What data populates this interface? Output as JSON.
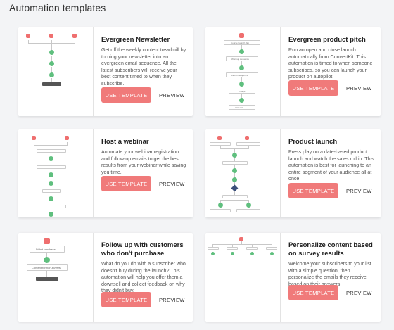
{
  "page": {
    "title": "Automation templates"
  },
  "actions": {
    "use_label": "USE TEMPLATE",
    "preview_label": "PREVIEW"
  },
  "colors": {
    "use_button": "#f07a7a",
    "trigger": "#ef6f6f",
    "step": "#5fbf7e",
    "background": "#f3f4f6"
  },
  "templates": [
    {
      "title": "Evergreen Newsletter",
      "description": "Get off the weekly content treadmill by turning your newsletter into an evergreen email sequence. All the latest subscribers will receive your best content timed to when they subscribe."
    },
    {
      "title": "Evergreen product pitch",
      "description": "Run an open and close launch automatically from ConvertKit. This automation is timed to when someone subscribes, so you can launch your product on autopilot."
    },
    {
      "title": "Host a webinar",
      "description": "Automate your webinar registration and follow-up emails to get the best results from your webinar while saving you time."
    },
    {
      "title": "Product launch",
      "description": "Press play on a date-based product launch and watch the sales roll in. This automation is best for launching to an entire segment of your audience all at once."
    },
    {
      "title": "Follow up with customers who don't purchase",
      "description": "What do you do with a subscriber who doesn't buy during the launch? This automation will help you offer them a downsell and collect feedback on why they didn't buy."
    },
    {
      "title": "Personalize content based on survey results",
      "description": "Welcome your subscribers to your list with a simple question, then personalize the emails they receive based on their answers."
    }
  ],
  "flows": {
    "evergreen_product_pitch": [
      "Course Launch Tag",
      "Warmup sequence",
      "Launch sequence",
      "3 Days",
      "Waterfall"
    ],
    "follow_up": [
      "Didn't purchase",
      "Content for non-buyers"
    ]
  }
}
